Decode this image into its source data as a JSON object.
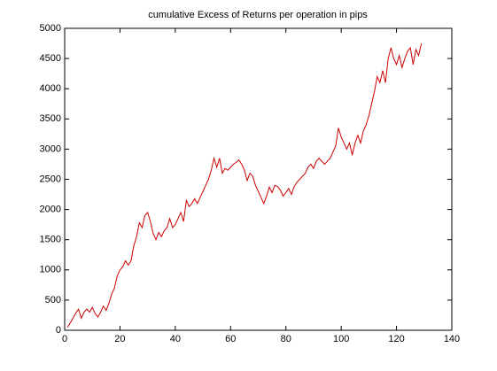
{
  "chart_data": {
    "type": "line",
    "title": "cumulative Excess of Returns per operation in pips",
    "x": [
      1,
      2,
      3,
      4,
      5,
      6,
      7,
      8,
      9,
      10,
      11,
      12,
      13,
      14,
      15,
      16,
      17,
      18,
      19,
      20,
      21,
      22,
      23,
      24,
      25,
      26,
      27,
      28,
      29,
      30,
      31,
      32,
      33,
      34,
      35,
      36,
      37,
      38,
      39,
      40,
      41,
      42,
      43,
      44,
      45,
      46,
      47,
      48,
      49,
      50,
      51,
      52,
      53,
      54,
      55,
      56,
      57,
      58,
      59,
      60,
      61,
      62,
      63,
      64,
      65,
      66,
      67,
      68,
      69,
      70,
      71,
      72,
      73,
      74,
      75,
      76,
      77,
      78,
      79,
      80,
      81,
      82,
      83,
      84,
      85,
      86,
      87,
      88,
      89,
      90,
      91,
      92,
      93,
      94,
      95,
      96,
      97,
      98,
      99,
      100,
      101,
      102,
      103,
      104,
      105,
      106,
      107,
      108,
      109,
      110,
      111,
      112,
      113,
      114,
      115,
      116,
      117,
      118,
      119,
      120,
      121,
      122,
      123,
      124,
      125,
      126,
      127,
      128,
      129
    ],
    "series": [
      {
        "color": "#cc0000",
        "values": [
          50,
          120,
          200,
          280,
          350,
          200,
          300,
          350,
          300,
          380,
          280,
          220,
          300,
          400,
          330,
          450,
          600,
          700,
          900,
          1000,
          1050,
          1150,
          1080,
          1150,
          1400,
          1550,
          1780,
          1700,
          1900,
          1950,
          1800,
          1600,
          1500,
          1620,
          1550,
          1650,
          1700,
          1850,
          1700,
          1750,
          1850,
          1950,
          1800,
          2150,
          2050,
          2100,
          2180,
          2100,
          2200,
          2300,
          2400,
          2500,
          2650,
          2850,
          2700,
          2850,
          2600,
          2680,
          2650,
          2700,
          2750,
          2780,
          2820,
          2750,
          2650,
          2480,
          2600,
          2550,
          2400,
          2300,
          2200,
          2100,
          2220,
          2370,
          2280,
          2400,
          2380,
          2320,
          2220,
          2280,
          2350,
          2250,
          2380,
          2450,
          2500,
          2550,
          2600,
          2700,
          2750,
          2680,
          2800,
          2850,
          2800,
          2750,
          2800,
          2850,
          2950,
          3050,
          3350,
          3200,
          3100,
          3000,
          3100,
          2900,
          3100,
          3230,
          3100,
          3300,
          3400,
          3550,
          3750,
          3950,
          4200,
          4100,
          4300,
          4100,
          4500,
          4680,
          4500,
          4400,
          4550,
          4350,
          4500,
          4620,
          4680,
          4400,
          4650,
          4550,
          4750
        ]
      }
    ],
    "xlim": [
      0,
      140
    ],
    "xticks": [
      0,
      20,
      40,
      60,
      80,
      100,
      120,
      140
    ],
    "ylim": [
      0,
      5000
    ],
    "yticks": [
      0,
      500,
      1000,
      1500,
      2000,
      2500,
      3000,
      3500,
      4000,
      4500,
      5000
    ]
  }
}
